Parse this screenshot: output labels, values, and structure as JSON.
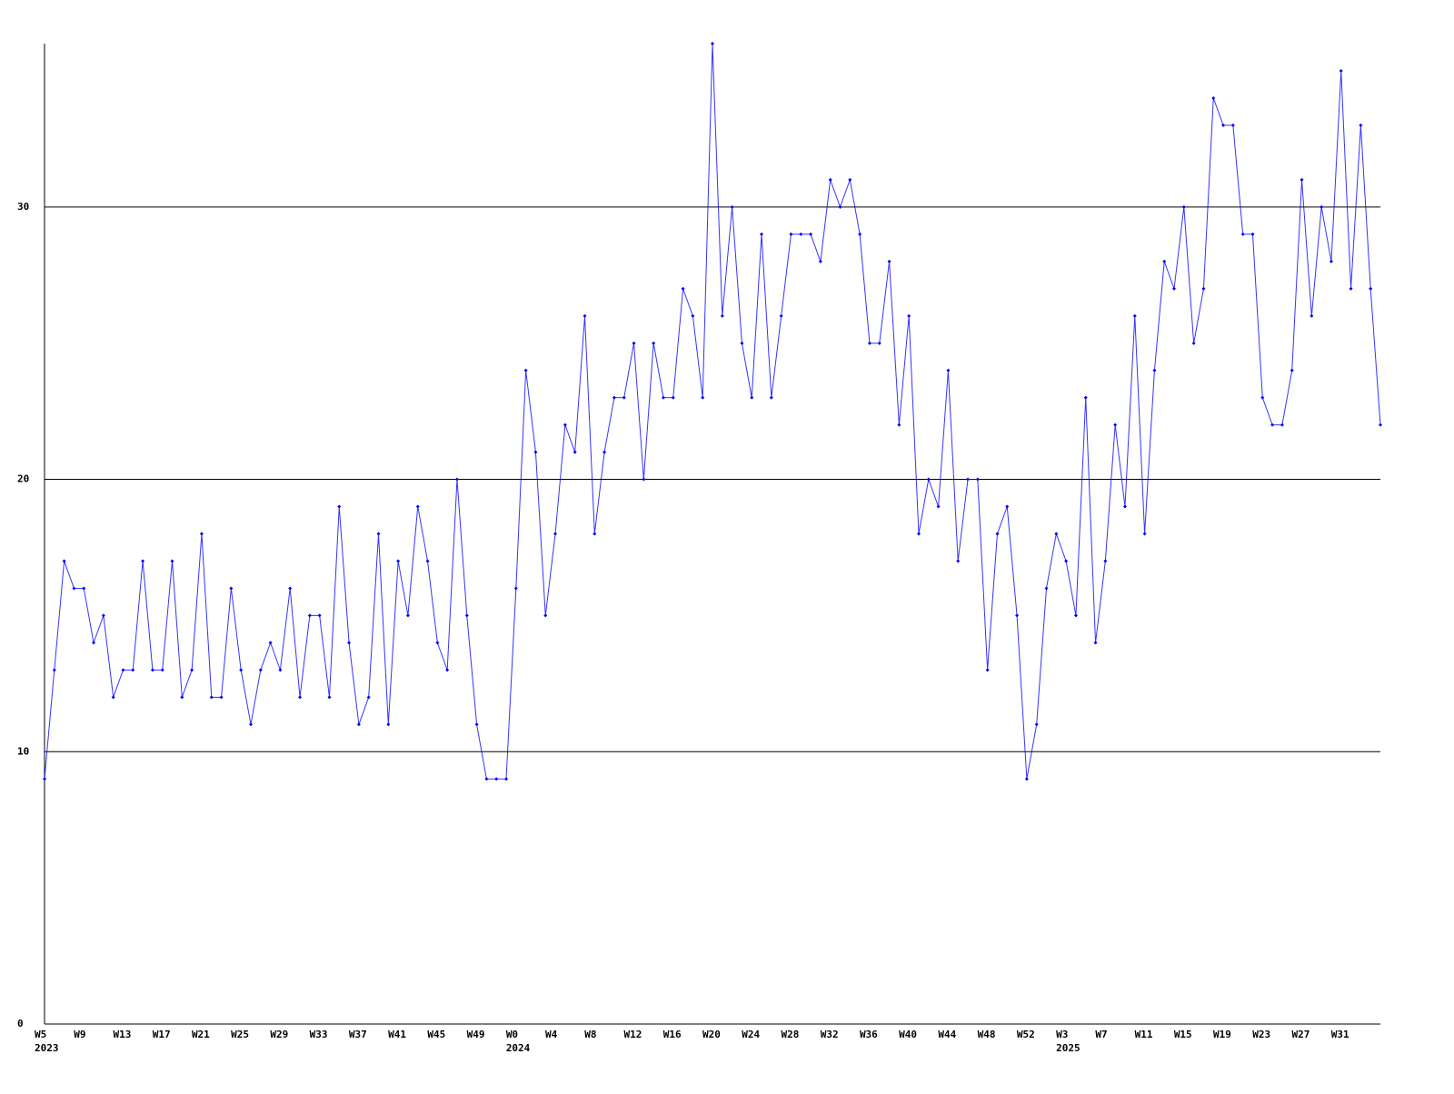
{
  "chart_data": {
    "type": "line",
    "color": "#0000ff",
    "ylim": [
      0,
      36
    ],
    "yticks": [
      0,
      10,
      20,
      30
    ],
    "grid": true,
    "categories": [
      "W5",
      null,
      null,
      null,
      "W9",
      null,
      null,
      null,
      "W13",
      null,
      null,
      null,
      "W17",
      null,
      null,
      null,
      "W21",
      null,
      null,
      null,
      "W25",
      null,
      null,
      null,
      "W29",
      null,
      null,
      null,
      "W33",
      null,
      null,
      null,
      "W37",
      null,
      null,
      null,
      "W41",
      null,
      null,
      null,
      "W45",
      null,
      null,
      null,
      "W49",
      null,
      null,
      null,
      "W0",
      null,
      null,
      null,
      "W4",
      null,
      null,
      null,
      "W8",
      null,
      null,
      null,
      "W12",
      null,
      null,
      null,
      "W16",
      null,
      null,
      null,
      "W20",
      null,
      null,
      null,
      "W24",
      null,
      null,
      null,
      "W28",
      null,
      null,
      null,
      "W32",
      null,
      null,
      null,
      "W36",
      null,
      null,
      null,
      "W40",
      null,
      null,
      null,
      "W44",
      null,
      null,
      null,
      "W48",
      null,
      null,
      null,
      "W52",
      null,
      null,
      null,
      "W3",
      null,
      null,
      null,
      "W7",
      null,
      null,
      null,
      "W11",
      null,
      null,
      null,
      "W15",
      null,
      null,
      null,
      "W19",
      null,
      null,
      null,
      "W23",
      null,
      null,
      null,
      "W27",
      null,
      null,
      null,
      "W31",
      null,
      null,
      null,
      null
    ],
    "years": [
      "2023",
      null,
      null,
      null,
      null,
      null,
      null,
      null,
      null,
      null,
      null,
      null,
      null,
      null,
      null,
      null,
      null,
      null,
      null,
      null,
      null,
      null,
      null,
      null,
      null,
      null,
      null,
      null,
      null,
      null,
      null,
      null,
      null,
      null,
      null,
      null,
      null,
      null,
      null,
      null,
      null,
      null,
      null,
      null,
      null,
      null,
      null,
      null,
      "2024",
      null,
      null,
      null,
      null,
      null,
      null,
      null,
      null,
      null,
      null,
      null,
      null,
      null,
      null,
      null,
      null,
      null,
      null,
      null,
      null,
      null,
      null,
      null,
      null,
      null,
      null,
      null,
      null,
      null,
      null,
      null,
      null,
      null,
      null,
      null,
      null,
      null,
      null,
      null,
      null,
      null,
      null,
      null,
      null,
      null,
      null,
      null,
      null,
      null,
      null,
      null,
      null,
      null,
      null,
      null,
      "2025",
      null,
      null,
      null,
      null,
      null,
      null,
      null,
      null,
      null,
      null,
      null,
      null,
      null,
      null,
      null,
      null,
      null,
      null,
      null,
      null,
      null,
      null,
      null,
      null,
      null,
      null,
      null,
      null,
      null,
      null,
      null,
      null
    ],
    "values": [
      9,
      13,
      17,
      16,
      16,
      14,
      15,
      12,
      13,
      13,
      17,
      13,
      13,
      17,
      12,
      13,
      18,
      12,
      12,
      16,
      13,
      11,
      13,
      14,
      13,
      16,
      12,
      15,
      15,
      12,
      19,
      14,
      11,
      12,
      18,
      11,
      17,
      15,
      19,
      17,
      14,
      13,
      20,
      15,
      11,
      9,
      9,
      9,
      16,
      24,
      21,
      15,
      18,
      22,
      21,
      26,
      18,
      21,
      23,
      23,
      25,
      20,
      25,
      23,
      23,
      27,
      26,
      23,
      36,
      26,
      30,
      25,
      23,
      29,
      23,
      26,
      29,
      29,
      29,
      28,
      31,
      30,
      31,
      29,
      25,
      25,
      28,
      22,
      26,
      18,
      20,
      19,
      24,
      17,
      20,
      20,
      13,
      18,
      19,
      15,
      9,
      11,
      16,
      18,
      17,
      15,
      23,
      14,
      17,
      22,
      19,
      26,
      18,
      24,
      28,
      27,
      30,
      25,
      27,
      34,
      33,
      33,
      29,
      29,
      23,
      22,
      22,
      24,
      31,
      26,
      30,
      28,
      35,
      27,
      33,
      27,
      22
    ]
  }
}
